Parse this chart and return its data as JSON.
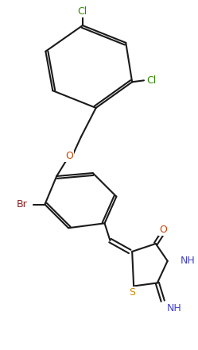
{
  "bg_color": "#ffffff",
  "bond_color": "#1a1a1a",
  "atom_colors": {
    "Cl": "#2e8b00",
    "Br": "#8b2222",
    "O": "#cc4400",
    "N": "#4444cc",
    "S": "#cc8800",
    "C": "#1a1a1a",
    "H": "#1a1a1a"
  },
  "figsize": [
    2.49,
    4.41
  ],
  "dpi": 100
}
